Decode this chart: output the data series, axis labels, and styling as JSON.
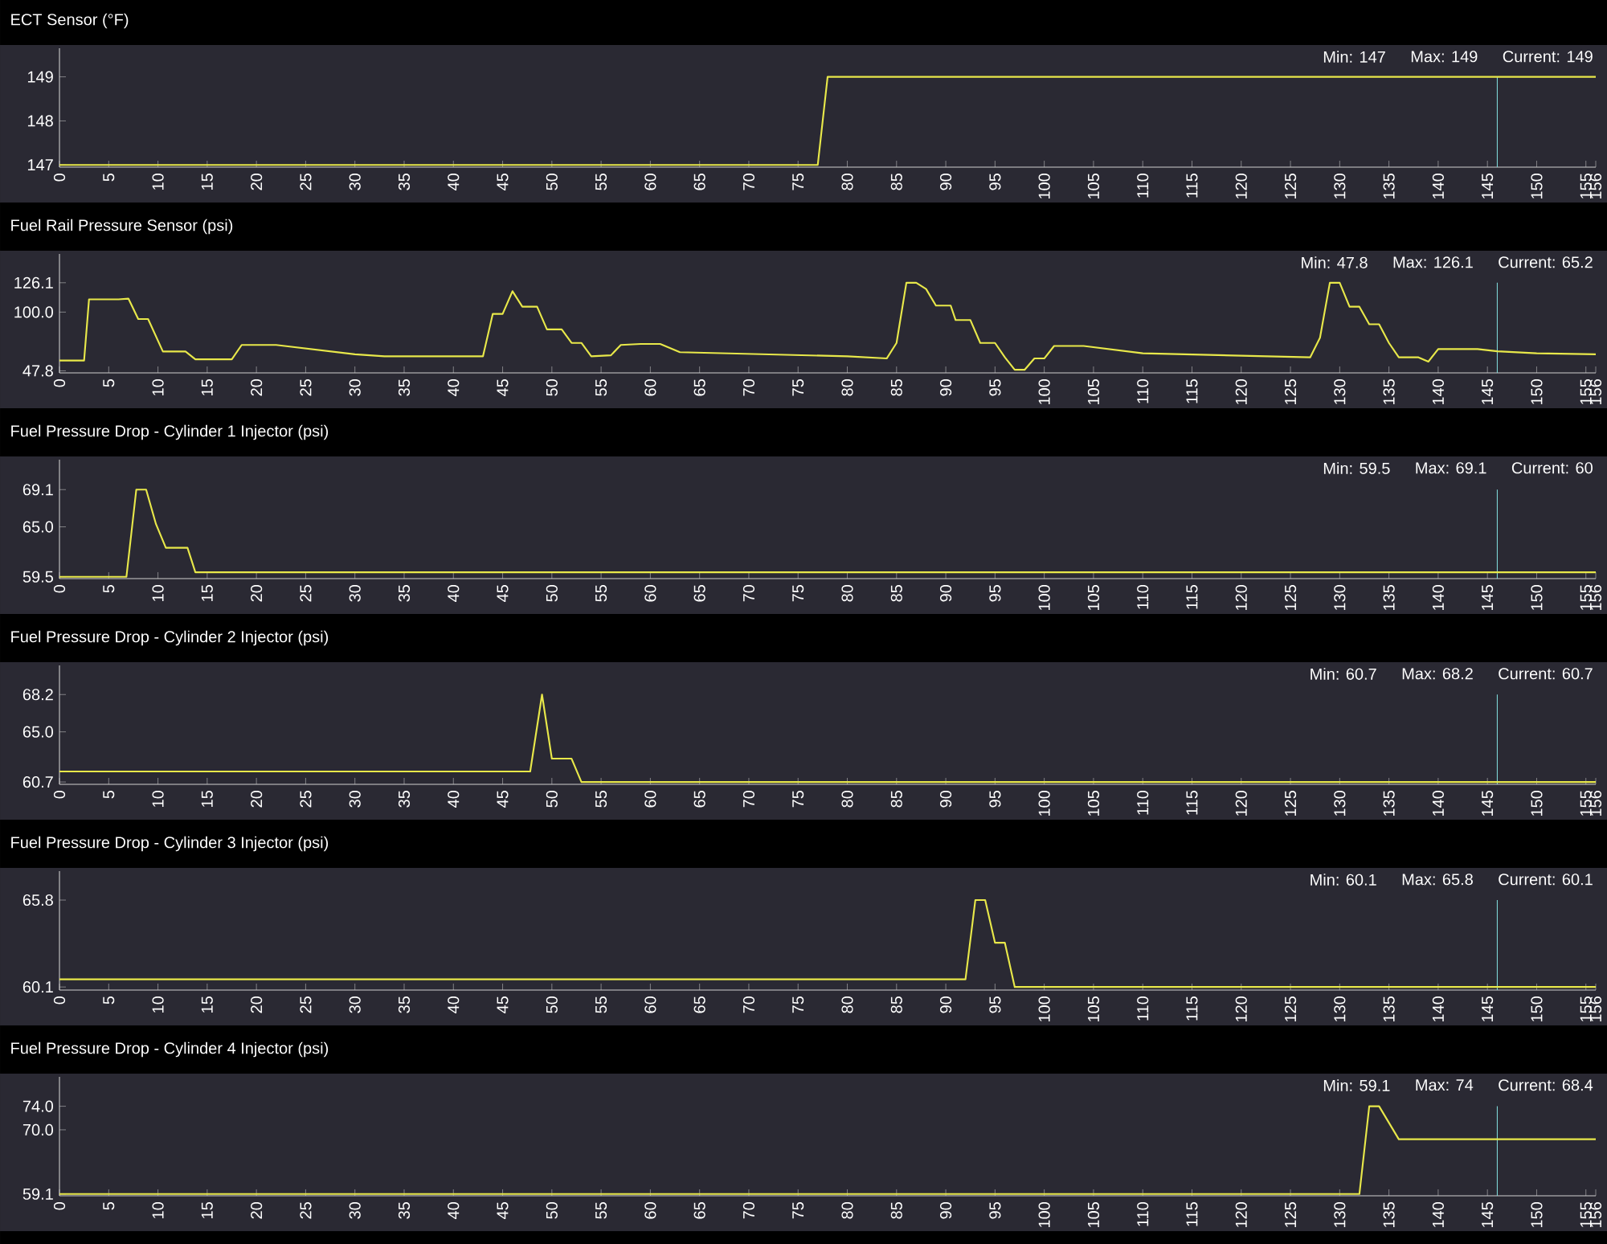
{
  "chart_data": [
    {
      "type": "line",
      "title": "ECT Sensor (°F)",
      "color": "#e8e84a",
      "x": [
        0,
        77,
        78,
        156
      ],
      "values": [
        147,
        147,
        149,
        149
      ],
      "xlim": [
        0,
        156
      ],
      "xticks": [
        0,
        5,
        10,
        15,
        20,
        25,
        30,
        35,
        40,
        45,
        50,
        55,
        60,
        65,
        70,
        75,
        80,
        85,
        90,
        95,
        100,
        105,
        110,
        115,
        120,
        125,
        130,
        135,
        140,
        145,
        150,
        155,
        156
      ],
      "ylim": [
        146.95,
        149.65
      ],
      "yticks": [
        147,
        148,
        149
      ],
      "annotations": [
        "Min: 147",
        "Max: 149",
        "Current: 149"
      ],
      "ref_lines": [
        {
          "axis": "x",
          "value": 146,
          "color": "#7fd8d8"
        }
      ]
    },
    {
      "type": "line",
      "title": "Fuel Rail Pressure Sensor (psi)",
      "color": "#e8e84a",
      "x": [
        0,
        2.5,
        3,
        6,
        7,
        8,
        9,
        10.5,
        12.8,
        13.8,
        17.5,
        18.5,
        22,
        30,
        33,
        43,
        44,
        45,
        46,
        47,
        48.5,
        49.5,
        51,
        52,
        53,
        54,
        56,
        57,
        59,
        61,
        63,
        80,
        84,
        85,
        86,
        87,
        88,
        89,
        90.5,
        91,
        92.5,
        93.5,
        95,
        96,
        97,
        98,
        99,
        100,
        101,
        104,
        110,
        127,
        128,
        129,
        130,
        131,
        132,
        133,
        134,
        135,
        136,
        138,
        139,
        140,
        144,
        146,
        150,
        156
      ],
      "values": [
        57,
        57,
        111.3,
        111.3,
        112,
        93.8,
        93.8,
        65,
        65,
        58,
        58,
        70.8,
        70.8,
        62.5,
        60.7,
        60.7,
        98.4,
        98.4,
        118.6,
        104.8,
        104.8,
        84.6,
        84.6,
        72.6,
        72.6,
        60.7,
        61.6,
        70.8,
        71.7,
        71.7,
        64.4,
        60.7,
        58.8,
        72.6,
        126.1,
        126.1,
        120.5,
        105.8,
        105.8,
        92.9,
        92.9,
        72.6,
        72.6,
        59.8,
        48.7,
        48.7,
        58.8,
        58.8,
        69.9,
        69.9,
        63.4,
        59.8,
        77.2,
        126.1,
        126.1,
        104.8,
        104.8,
        89.2,
        89.2,
        72.6,
        59.8,
        59.8,
        56,
        67.1,
        67.1,
        65.2,
        63.4,
        62.5
      ],
      "xlim": [
        0,
        156
      ],
      "xticks": [
        0,
        5,
        10,
        15,
        20,
        25,
        30,
        35,
        40,
        45,
        50,
        55,
        60,
        65,
        70,
        75,
        80,
        85,
        90,
        95,
        100,
        105,
        110,
        115,
        120,
        125,
        130,
        135,
        140,
        145,
        150,
        155,
        156
      ],
      "ylim": [
        46,
        151.7
      ],
      "yticks": [
        47.8,
        {
          "value": 100,
          "label": "100.0"
        },
        126.1
      ],
      "annotations": [
        "Min: 47.8",
        "Max: 126.1",
        "Current: 65.2"
      ],
      "ref_lines": [
        {
          "axis": "x",
          "value": 146,
          "color": "#7fd8d8"
        }
      ]
    },
    {
      "type": "line",
      "title": "Fuel Pressure Drop - Cylinder 1 Injector (psi)",
      "color": "#e8e84a",
      "x": [
        0,
        6.8,
        7.8,
        8.8,
        9.8,
        10.8,
        13,
        13.8,
        156
      ],
      "values": [
        59.5,
        59.5,
        69.1,
        69.1,
        65.3,
        62.7,
        62.7,
        60,
        60
      ],
      "xlim": [
        0,
        156
      ],
      "xticks": [
        0,
        5,
        10,
        15,
        20,
        25,
        30,
        35,
        40,
        45,
        50,
        55,
        60,
        65,
        70,
        75,
        80,
        85,
        90,
        95,
        100,
        105,
        110,
        115,
        120,
        125,
        130,
        135,
        140,
        145,
        150,
        155,
        156
      ],
      "ylim": [
        59.3,
        72.4
      ],
      "yticks": [
        59.5,
        {
          "value": 65,
          "label": "65.0"
        },
        69.1
      ],
      "annotations": [
        "Min: 59.5",
        "Max: 69.1",
        "Current: 60"
      ],
      "ref_lines": [
        {
          "axis": "x",
          "value": 146,
          "color": "#7fd8d8"
        }
      ]
    },
    {
      "type": "line",
      "title": "Fuel Pressure Drop - Cylinder 2 Injector (psi)",
      "color": "#e8e84a",
      "x": [
        0,
        47.8,
        49,
        50,
        52,
        53,
        156
      ],
      "values": [
        61.6,
        61.6,
        68.2,
        62.7,
        62.7,
        60.7,
        60.7
      ],
      "xlim": [
        0,
        156
      ],
      "xticks": [
        0,
        5,
        10,
        15,
        20,
        25,
        30,
        35,
        40,
        45,
        50,
        55,
        60,
        65,
        70,
        75,
        80,
        85,
        90,
        95,
        100,
        105,
        110,
        115,
        120,
        125,
        130,
        135,
        140,
        145,
        150,
        155,
        156
      ],
      "ylim": [
        60.5,
        70.7
      ],
      "yticks": [
        60.7,
        {
          "value": 65,
          "label": "65.0"
        },
        68.2
      ],
      "annotations": [
        "Min: 60.7",
        "Max: 68.2",
        "Current: 60.7"
      ],
      "ref_lines": [
        {
          "axis": "x",
          "value": 146,
          "color": "#7fd8d8"
        }
      ]
    },
    {
      "type": "line",
      "title": "Fuel Pressure Drop - Cylinder 3 Injector (psi)",
      "color": "#e8e84a",
      "x": [
        0,
        92,
        93,
        94,
        95,
        96,
        97,
        156
      ],
      "values": [
        60.6,
        60.6,
        65.8,
        65.8,
        63,
        63,
        60.1,
        60.1
      ],
      "xlim": [
        0,
        156
      ],
      "xticks": [
        0,
        5,
        10,
        15,
        20,
        25,
        30,
        35,
        40,
        45,
        50,
        55,
        60,
        65,
        70,
        75,
        80,
        85,
        90,
        95,
        100,
        105,
        110,
        115,
        120,
        125,
        130,
        135,
        140,
        145,
        150,
        155,
        156
      ],
      "ylim": [
        59.9,
        67.7
      ],
      "yticks": [
        60.1,
        65.8
      ],
      "annotations": [
        "Min: 60.1",
        "Max: 65.8",
        "Current: 60.1"
      ],
      "ref_lines": [
        {
          "axis": "x",
          "value": 146,
          "color": "#7fd8d8"
        }
      ]
    },
    {
      "type": "line",
      "title": "Fuel Pressure Drop - Cylinder 4 Injector (psi)",
      "color": "#e8e84a",
      "x": [
        0,
        132,
        133,
        134,
        136,
        156
      ],
      "values": [
        59.1,
        59.1,
        74,
        74,
        68.4,
        68.4
      ],
      "xlim": [
        0,
        156
      ],
      "xticks": [
        0,
        5,
        10,
        15,
        20,
        25,
        30,
        35,
        40,
        45,
        50,
        55,
        60,
        65,
        70,
        75,
        80,
        85,
        90,
        95,
        100,
        105,
        110,
        115,
        120,
        125,
        130,
        135,
        140,
        145,
        150,
        155,
        156
      ],
      "ylim": [
        58.8,
        79
      ],
      "yticks": [
        59.1,
        {
          "value": 70,
          "label": "70.0"
        },
        {
          "value": 74,
          "label": "74.0"
        }
      ],
      "annotations": [
        "Min: 59.1",
        "Max: 74",
        "Current: 68.4"
      ],
      "ref_lines": [
        {
          "axis": "x",
          "value": 146,
          "color": "#7fd8d8"
        }
      ]
    }
  ]
}
